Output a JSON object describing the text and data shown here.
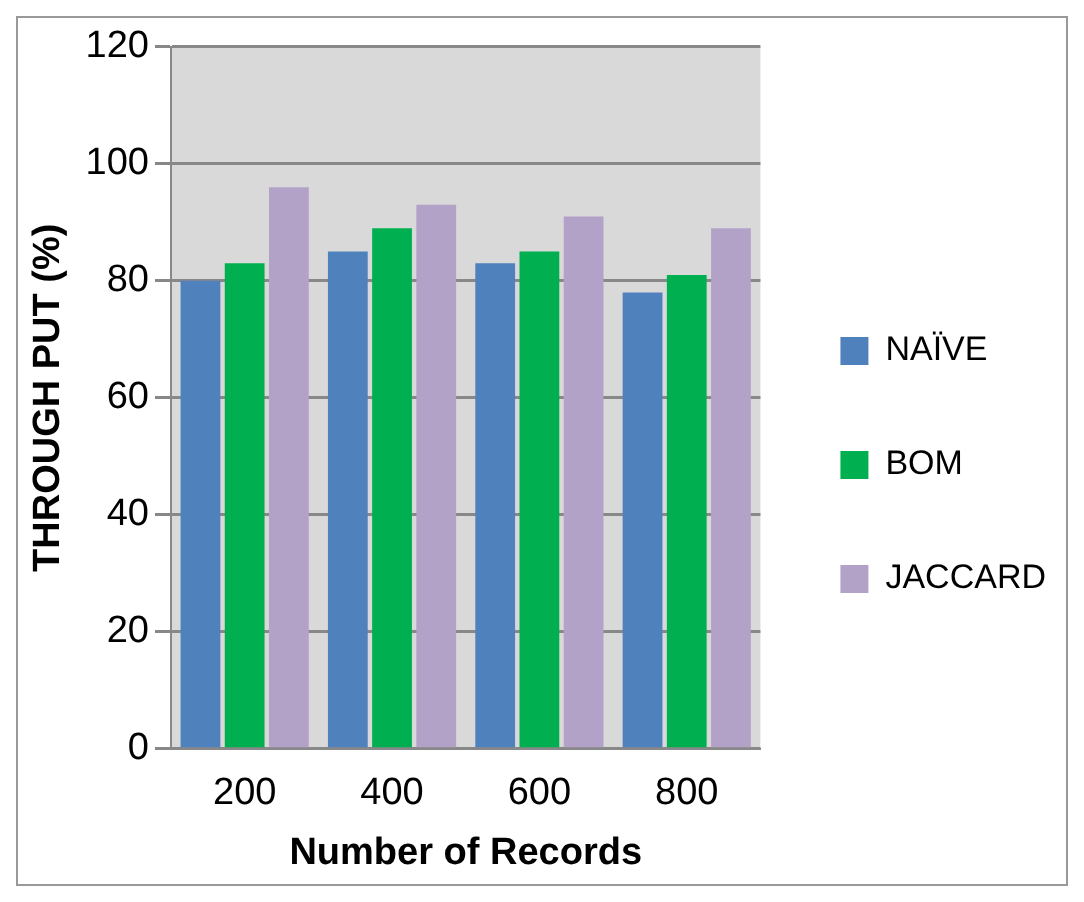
{
  "chart_data": {
    "type": "bar",
    "xlabel": "Number of Records",
    "ylabel": "THROUGH PUT (%)",
    "categories": [
      "200",
      "400",
      "600",
      "800"
    ],
    "series": [
      {
        "name": "NAÏVE",
        "color": "#4f81bd",
        "values": [
          80,
          85,
          83,
          78
        ]
      },
      {
        "name": "BOM",
        "color": "#00b050",
        "values": [
          83,
          89,
          85,
          81
        ]
      },
      {
        "name": "JACCARD",
        "color": "#b3a2c7",
        "values": [
          96,
          93,
          91,
          89
        ]
      }
    ],
    "ylim": [
      0,
      120
    ],
    "yticks": [
      0,
      20,
      40,
      60,
      80,
      100,
      120
    ],
    "grid": "y",
    "legend": "right"
  }
}
